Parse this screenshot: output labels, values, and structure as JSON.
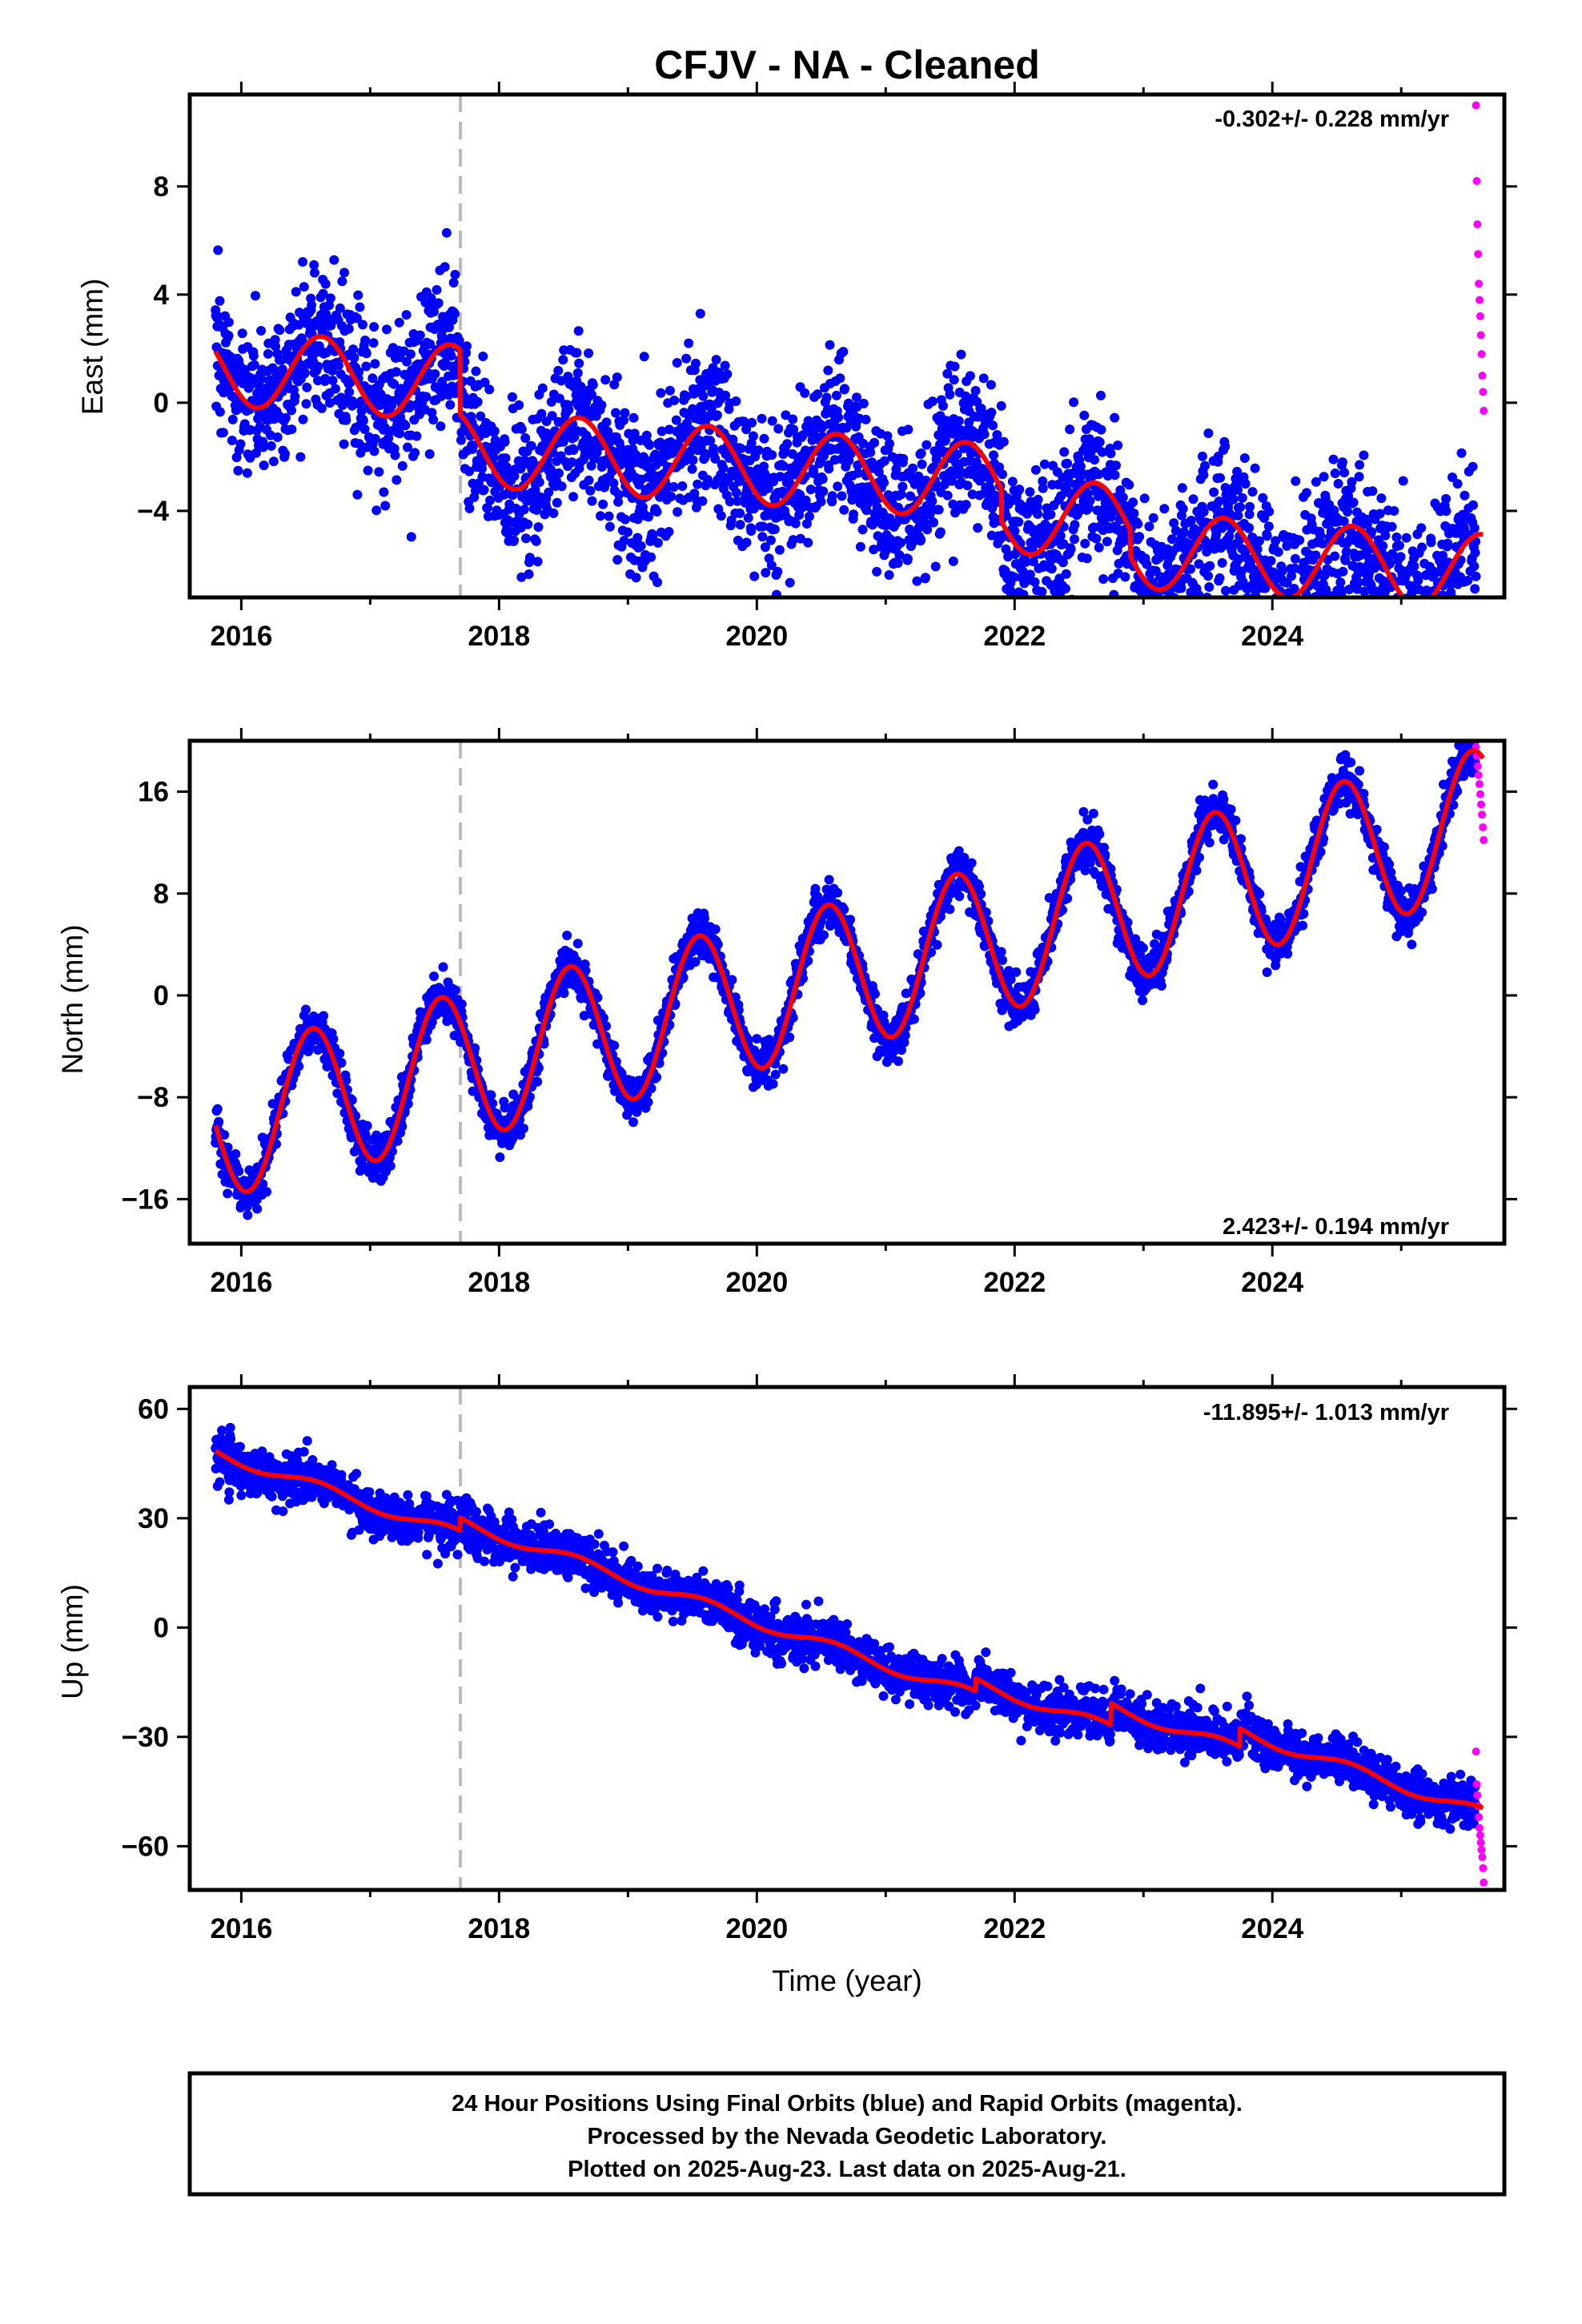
{
  "colors": {
    "final_orbits": "#0000ff",
    "rapid_orbits": "#ff00ff",
    "model": "#ff0000",
    "event_line": "#bbbbbb",
    "frame": "#000000"
  },
  "chart_data": {
    "type": "scatter",
    "title": "CFJV  - NA - Cleaned",
    "xlabel": "Time (year)",
    "data_start": 2015.8,
    "data_end": 2025.64,
    "rapid_start": 2025.58,
    "event_lines": [
      2017.7
    ],
    "panels": [
      {
        "ylabel": "East (mm)",
        "rate_text": "-0.302+/- 0.228 mm/yr",
        "rate_position": "top-right",
        "xlim": [
          2015.6,
          2025.8
        ],
        "ylim": [
          -7.2,
          11.4
        ],
        "yticks": [
          -4,
          0,
          4,
          8
        ],
        "xticks": [
          2016,
          2018,
          2020,
          2022,
          2024
        ],
        "trend": {
          "t0": 2015.8,
          "v0": 1.3,
          "rate": -0.302
        },
        "annual": {
          "amplitude": 1.4,
          "peak": 0.62
        },
        "offsets": [
          {
            "at": 2017.7,
            "value": -2.4
          },
          {
            "at": 2021.9,
            "value": -1.2
          },
          {
            "at": 2022.9,
            "value": -1.0
          }
        ],
        "noise_sd": 1.4,
        "rapid_values": [
          11.0,
          8.2,
          6.6,
          5.5,
          4.4,
          3.8,
          3.2,
          2.5,
          1.8,
          1.0,
          0.4,
          -0.3
        ]
      },
      {
        "ylabel": "North (mm)",
        "rate_text": "2.423+/- 0.194 mm/yr",
        "rate_position": "bottom-right",
        "xlim": [
          2015.6,
          2025.8
        ],
        "ylim": [
          -19.5,
          20
        ],
        "yticks": [
          -16,
          -8,
          0,
          8,
          16
        ],
        "xticks": [
          2016,
          2018,
          2020,
          2022,
          2024
        ],
        "trend": {
          "t0": 2015.8,
          "v0": -10.2,
          "rate": 2.423
        },
        "annual": {
          "amplitude": 5.8,
          "peak": 0.55
        },
        "offsets": [],
        "noise_sd": 0.9,
        "rapid_values": [
          19.5,
          18.8,
          18.0,
          17.3,
          16.6,
          15.8,
          15.0,
          14.2,
          13.2,
          12.2
        ]
      },
      {
        "ylabel": "Up (mm)",
        "rate_text": "-11.895+/- 1.013 mm/yr",
        "rate_position": "top-right",
        "xlim": [
          2015.6,
          2025.8
        ],
        "ylim": [
          -72,
          66
        ],
        "yticks": [
          -60,
          -30,
          0,
          30,
          60
        ],
        "xticks": [
          2016,
          2018,
          2020,
          2022,
          2024
        ],
        "trend": {
          "t0": 2015.8,
          "v0": 48,
          "rate": -11.895
        },
        "annual": {
          "amplitude": 1.5,
          "peak": 0.6
        },
        "offsets": [
          {
            "at": 2017.7,
            "value": 3.5
          },
          {
            "at": 2021.7,
            "value": 3.5
          },
          {
            "at": 2022.75,
            "value": 6
          },
          {
            "at": 2023.75,
            "value": 5
          }
        ],
        "noise_sd": 3.2,
        "rapid_values": [
          -34,
          -43,
          -46,
          -49,
          -52,
          -55,
          -57,
          -59,
          -61,
          -63,
          -66,
          -70
        ]
      }
    ]
  },
  "footer": {
    "line1": "24 Hour Positions Using Final Orbits (blue) and Rapid Orbits (magenta).",
    "line2": "Processed by the Nevada Geodetic Laboratory.",
    "line3": "Plotted on 2025-Aug-23. Last data on 2025-Aug-21."
  }
}
